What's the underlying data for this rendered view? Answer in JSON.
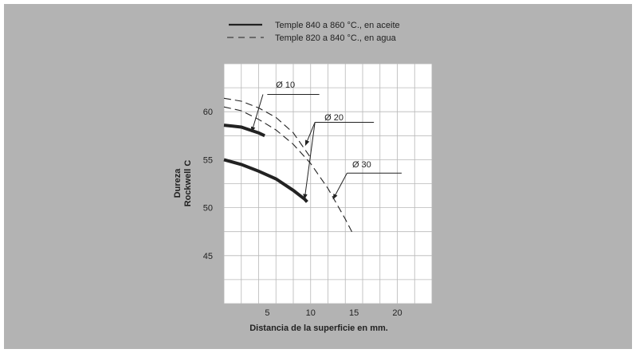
{
  "colors": {
    "panel": "#b3b3b3",
    "plot_bg": "#ffffff",
    "grid": "#b8b8b8",
    "ink": "#222222"
  },
  "chart_data": {
    "type": "line",
    "title": "",
    "xlabel": "Distancia de la superficie en mm.",
    "ylabel": [
      "Dureza",
      "Rockwell C"
    ],
    "xlim": [
      0,
      24
    ],
    "ylim": [
      40,
      65
    ],
    "x_ticks": [
      5,
      10,
      15,
      20
    ],
    "y_ticks": [
      45,
      50,
      55,
      60
    ],
    "grid": true,
    "legend_position": "top",
    "legend": [
      {
        "label": "Temple 840 a 860 °C., en aceite",
        "style": "solid"
      },
      {
        "label": "Temple 820 a 840 °C., en agua",
        "style": "dashed"
      }
    ],
    "series": [
      {
        "group": "Temple 840 a 860 °C., en aceite",
        "diameter": "Ø 10",
        "style": "solid",
        "points": [
          [
            0,
            58.6
          ],
          [
            1,
            58.5
          ],
          [
            2,
            58.4
          ],
          [
            3,
            58.1
          ],
          [
            4,
            57.8
          ],
          [
            4.7,
            57.5
          ]
        ]
      },
      {
        "group": "Temple 840 a 860 °C., en aceite",
        "diameter": "Ø 20",
        "style": "solid",
        "points": [
          [
            0,
            55.0
          ],
          [
            2,
            54.5
          ],
          [
            4,
            53.8
          ],
          [
            6,
            53.0
          ],
          [
            8,
            51.8
          ],
          [
            9.3,
            50.9
          ],
          [
            9.6,
            50.6
          ]
        ]
      },
      {
        "group": "Temple 820 a 840 °C., en agua",
        "diameter": "Ø 10",
        "style": "dashed",
        "points": [
          [
            0,
            61.4
          ],
          [
            2,
            61.1
          ],
          [
            4,
            60.4
          ],
          [
            6,
            59.4
          ],
          [
            8,
            57.8
          ],
          [
            10,
            55.2
          ]
        ]
      },
      {
        "group": "Temple 820 a 840 °C., en agua",
        "diameter": "Ø 20",
        "style": "dashed",
        "points": [
          [
            0,
            60.5
          ],
          [
            2,
            60.1
          ],
          [
            4,
            59.2
          ],
          [
            6,
            58.1
          ],
          [
            8,
            56.6
          ],
          [
            10,
            54.6
          ],
          [
            12,
            52.0
          ],
          [
            14,
            48.8
          ],
          [
            14.8,
            47.4
          ]
        ]
      }
    ],
    "annotations": [
      {
        "label": "Ø 10",
        "text_at": [
          6,
          62.5
        ],
        "leader": [
          [
            5,
            61.8
          ],
          [
            11,
            61.8
          ]
        ],
        "arrows": [
          [
            [
              4.5,
              61.8
            ],
            [
              3.2,
              57.9
            ]
          ]
        ]
      },
      {
        "label": "Ø 20",
        "text_at": [
          11.6,
          59.1
        ],
        "leader": [
          [
            10.5,
            58.9
          ],
          [
            17.3,
            58.9
          ]
        ],
        "arrows": [
          [
            [
              10.5,
              58.9
            ],
            [
              9.3,
              50.9
            ]
          ],
          [
            [
              10.5,
              58.9
            ],
            [
              9.4,
              56.5
            ]
          ]
        ]
      },
      {
        "label": "Ø 30",
        "text_at": [
          14.8,
          54.2
        ],
        "leader": [
          [
            14.2,
            53.6
          ],
          [
            20.5,
            53.6
          ]
        ],
        "arrows": [
          [
            [
              14.2,
              53.6
            ],
            [
              12.6,
              50.9
            ]
          ]
        ]
      }
    ]
  }
}
